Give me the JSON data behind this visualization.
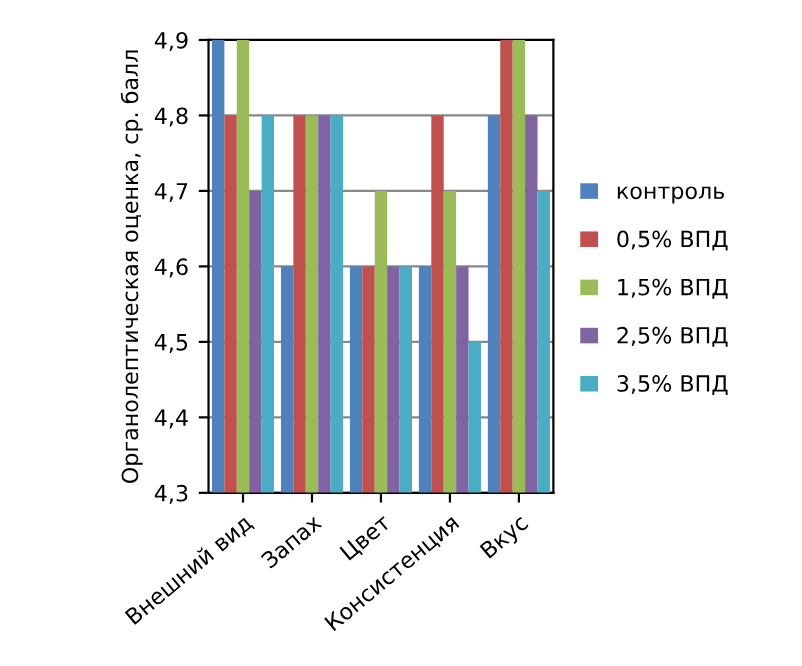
{
  "chart_data": {
    "type": "bar",
    "ylabel": "Органолептическая оценка, ср. балл",
    "categories": [
      "Внешний вид",
      "Запах",
      "Цвет",
      "Консистенция",
      "Вкус"
    ],
    "series": [
      {
        "name": "контроль",
        "color": "#4f81bd",
        "values": [
          4.9,
          4.6,
          4.6,
          4.6,
          4.8
        ]
      },
      {
        "name": "0,5% ВПД",
        "color": "#c0504d",
        "values": [
          4.8,
          4.8,
          4.6,
          4.8,
          4.9
        ]
      },
      {
        "name": "1,5% ВПД",
        "color": "#9bbb59",
        "values": [
          4.9,
          4.8,
          4.7,
          4.7,
          4.9
        ]
      },
      {
        "name": "2,5% ВПД",
        "color": "#8064a2",
        "values": [
          4.7,
          4.8,
          4.6,
          4.6,
          4.8
        ]
      },
      {
        "name": "3,5% ВПД",
        "color": "#4bacc6",
        "values": [
          4.8,
          4.8,
          4.6,
          4.5,
          4.7
        ]
      }
    ],
    "ylim": [
      4.3,
      4.9
    ],
    "yticks": [
      {
        "value": 4.3,
        "label": "4,3"
      },
      {
        "value": 4.4,
        "label": "4,4"
      },
      {
        "value": 4.5,
        "label": "4,5"
      },
      {
        "value": 4.6,
        "label": "4,6"
      },
      {
        "value": 4.7,
        "label": "4,7"
      },
      {
        "value": 4.8,
        "label": "4,8"
      },
      {
        "value": 4.9,
        "label": "4,9"
      }
    ],
    "grid": "y",
    "legend": "right"
  }
}
